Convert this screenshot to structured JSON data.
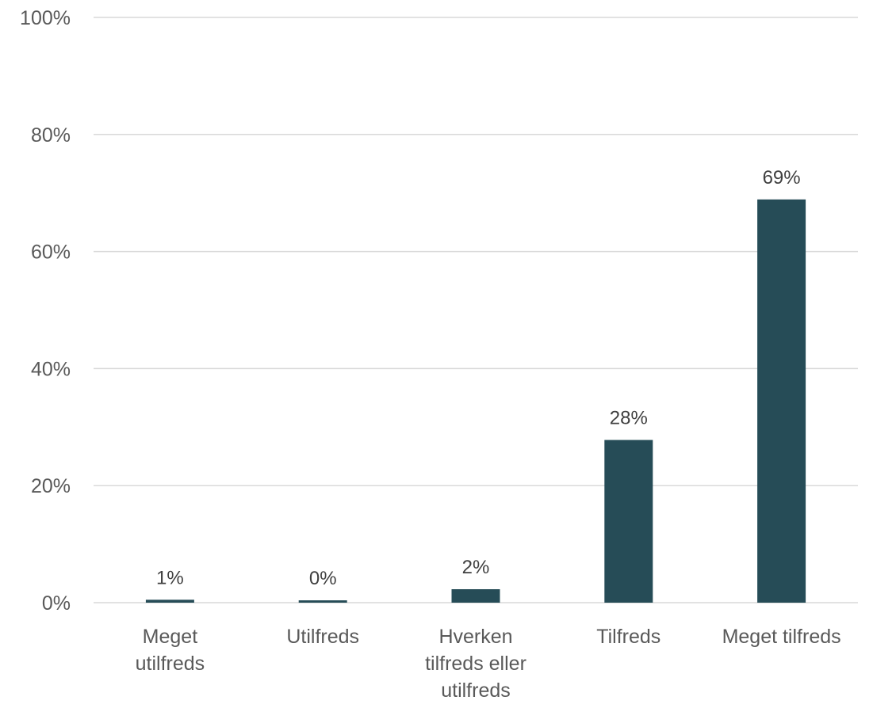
{
  "chart_data": {
    "type": "bar",
    "title": "",
    "xlabel": "",
    "ylabel": "",
    "categories": [
      "Meget utilfreds",
      "Utilfreds",
      "Hverken tilfreds eller utilfreds",
      "Tilfreds",
      "Meget tilfreds"
    ],
    "category_label_lines": [
      [
        "Meget",
        "utilfreds"
      ],
      [
        "Utilfreds"
      ],
      [
        "Hverken",
        "tilfreds eller",
        "utilfreds"
      ],
      [
        "Tilfreds"
      ],
      [
        "Meget tilfreds"
      ]
    ],
    "values": [
      0.5,
      0.4,
      2.3,
      27.8,
      68.9
    ],
    "data_labels": [
      "1%",
      "0%",
      "2%",
      "28%",
      "69%"
    ],
    "ylim": [
      0,
      100
    ],
    "yticks": [
      0,
      20,
      40,
      60,
      80,
      100
    ],
    "ytick_labels": [
      "0%",
      "20%",
      "40%",
      "60%",
      "80%",
      "100%"
    ],
    "grid": true,
    "bar_color": "#264c57",
    "grid_color": "#d9d9d9",
    "text_color": "#595959"
  }
}
